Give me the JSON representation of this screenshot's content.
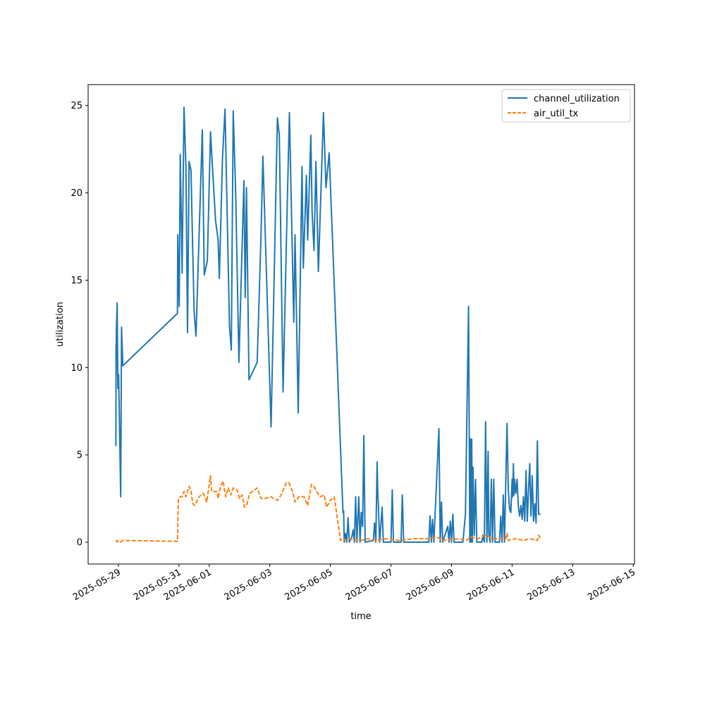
{
  "chart_data": {
    "type": "line",
    "title": "",
    "xlabel": "time",
    "ylabel": "utilization",
    "x_ticks": [
      "2025-05-29",
      "2025-05-31",
      "2025-06-01",
      "2025-06-03",
      "2025-06-05",
      "2025-06-07",
      "2025-06-09",
      "2025-06-11",
      "2025-06-13",
      "2025-06-15"
    ],
    "y_ticks": [
      0,
      5,
      10,
      15,
      20,
      25
    ],
    "xlim": [
      "2025-05-28T00:00",
      "2025-06-15T01:00"
    ],
    "ylim": [
      -1.25,
      26.2
    ],
    "grid": false,
    "legend_position": "top-right",
    "series": [
      {
        "name": "channel_utilization",
        "color": "#1f77b4",
        "style": "solid",
        "points": [
          [
            "2025-05-28T22:00",
            5.5
          ],
          [
            "2025-05-28T22:06",
            11.3
          ],
          [
            "2025-05-28T22:12",
            9.5
          ],
          [
            "2025-05-28T22:24",
            12.2
          ],
          [
            "2025-05-28T23:00",
            13.7
          ],
          [
            "2025-05-28T23:36",
            8.8
          ],
          [
            "2025-05-29T00:12",
            9.6
          ],
          [
            "2025-05-29T01:48",
            2.6
          ],
          [
            "2025-05-29T02:30",
            12.3
          ],
          [
            "2025-05-29T03:30",
            10.1
          ],
          [
            "2025-05-30T22:48",
            13.1
          ],
          [
            "2025-05-30T23:00",
            17.6
          ],
          [
            "2025-05-31T00:12",
            13.5
          ],
          [
            "2025-05-31T01:00",
            22.2
          ],
          [
            "2025-05-31T02:30",
            15.4
          ],
          [
            "2025-05-31T04:00",
            24.9
          ],
          [
            "2025-05-31T05:30",
            21.5
          ],
          [
            "2025-05-31T06:48",
            12.0
          ],
          [
            "2025-05-31T08:00",
            21.8
          ],
          [
            "2025-05-31T09:30",
            21.3
          ],
          [
            "2025-05-31T12:00",
            13.2
          ],
          [
            "2025-05-31T13:30",
            11.8
          ],
          [
            "2025-05-31T18:30",
            23.6
          ],
          [
            "2025-05-31T20:00",
            15.3
          ],
          [
            "2025-05-31T22:30",
            16.1
          ],
          [
            "2025-06-01T00:00",
            20.5
          ],
          [
            "2025-06-01T01:00",
            23.5
          ],
          [
            "2025-06-01T02:30",
            21.5
          ],
          [
            "2025-06-01T05:00",
            18.4
          ],
          [
            "2025-06-01T07:00",
            17.3
          ],
          [
            "2025-06-01T08:00",
            15.1
          ],
          [
            "2025-06-01T10:30",
            22.0
          ],
          [
            "2025-06-01T12:30",
            24.8
          ],
          [
            "2025-06-01T16:00",
            12.4
          ],
          [
            "2025-06-01T17:30",
            11.0
          ],
          [
            "2025-06-01T19:00",
            24.7
          ],
          [
            "2025-06-01T21:00",
            19.8
          ],
          [
            "2025-06-01T23:30",
            10.3
          ],
          [
            "2025-06-02T03:30",
            20.7
          ],
          [
            "2025-06-02T04:30",
            14.0
          ],
          [
            "2025-06-02T05:30",
            20.3
          ],
          [
            "2025-06-02T07:30",
            9.3
          ],
          [
            "2025-06-02T14:00",
            10.3
          ],
          [
            "2025-06-02T17:00",
            17.5
          ],
          [
            "2025-06-02T18:30",
            22.1
          ],
          [
            "2025-06-03T01:00",
            6.6
          ],
          [
            "2025-06-03T04:00",
            17.2
          ],
          [
            "2025-06-03T06:00",
            24.3
          ],
          [
            "2025-06-03T07:30",
            23.3
          ],
          [
            "2025-06-03T10:30",
            8.6
          ],
          [
            "2025-06-03T13:00",
            16.8
          ],
          [
            "2025-06-03T15:30",
            24.6
          ],
          [
            "2025-06-03T19:00",
            12.6
          ],
          [
            "2025-06-03T20:00",
            17.6
          ],
          [
            "2025-06-03T22:30",
            7.4
          ],
          [
            "2025-06-04T01:30",
            21.5
          ],
          [
            "2025-06-04T02:30",
            15.7
          ],
          [
            "2025-06-04T05:00",
            21.0
          ],
          [
            "2025-06-04T06:00",
            17.3
          ],
          [
            "2025-06-04T08:30",
            23.3
          ],
          [
            "2025-06-04T09:30",
            18.9
          ],
          [
            "2025-06-04T11:00",
            16.7
          ],
          [
            "2025-06-04T12:30",
            21.8
          ],
          [
            "2025-06-04T14:30",
            15.5
          ],
          [
            "2025-06-04T18:30",
            24.6
          ],
          [
            "2025-06-04T20:30",
            20.3
          ],
          [
            "2025-06-04T23:00",
            22.3
          ],
          [
            "2025-06-05T10:00",
            1.7
          ],
          [
            "2025-06-05T10:30",
            1.8
          ],
          [
            "2025-06-05T11:00",
            0.0
          ],
          [
            "2025-06-05T12:00",
            0.5
          ],
          [
            "2025-06-05T13:00",
            0.0
          ],
          [
            "2025-06-05T14:00",
            1.4
          ],
          [
            "2025-06-05T15:00",
            0.0
          ],
          [
            "2025-06-05T17:00",
            0.3
          ],
          [
            "2025-06-05T18:00",
            0.7
          ],
          [
            "2025-06-05T19:00",
            0.0
          ],
          [
            "2025-06-05T20:00",
            2.6
          ],
          [
            "2025-06-05T21:00",
            0.0
          ],
          [
            "2025-06-05T22:30",
            2.6
          ],
          [
            "2025-06-05T23:30",
            0.0
          ],
          [
            "2025-06-06T00:30",
            1.7
          ],
          [
            "2025-06-06T01:30",
            0.9
          ],
          [
            "2025-06-06T02:30",
            6.1
          ],
          [
            "2025-06-06T03:30",
            0.0
          ],
          [
            "2025-06-06T10:00",
            0.1
          ],
          [
            "2025-06-06T11:00",
            1.1
          ],
          [
            "2025-06-06T12:00",
            0.0
          ],
          [
            "2025-06-06T13:00",
            4.6
          ],
          [
            "2025-06-06T13:30",
            2.9
          ],
          [
            "2025-06-06T14:00",
            2.1
          ],
          [
            "2025-06-06T15:00",
            0.0
          ],
          [
            "2025-06-06T17:00",
            2.0
          ],
          [
            "2025-06-06T18:00",
            0.0
          ],
          [
            "2025-06-07T00:00",
            0.0
          ],
          [
            "2025-06-07T01:00",
            3.0
          ],
          [
            "2025-06-07T02:00",
            0.0
          ],
          [
            "2025-06-07T08:00",
            0.0
          ],
          [
            "2025-06-07T09:00",
            2.7
          ],
          [
            "2025-06-07T10:00",
            0.0
          ],
          [
            "2025-06-08T06:00",
            0.0
          ],
          [
            "2025-06-08T07:00",
            1.5
          ],
          [
            "2025-06-08T08:00",
            0.0
          ],
          [
            "2025-06-08T09:00",
            1.3
          ],
          [
            "2025-06-08T10:00",
            0.0
          ],
          [
            "2025-06-08T14:00",
            6.5
          ],
          [
            "2025-06-08T15:00",
            0.0
          ],
          [
            "2025-06-08T16:00",
            2.3
          ],
          [
            "2025-06-08T17:00",
            0.0
          ],
          [
            "2025-06-08T21:00",
            0.9
          ],
          [
            "2025-06-08T22:00",
            0.0
          ],
          [
            "2025-06-08T23:00",
            1.2
          ],
          [
            "2025-06-09T00:00",
            0.0
          ],
          [
            "2025-06-09T01:00",
            1.6
          ],
          [
            "2025-06-09T02:00",
            0.0
          ],
          [
            "2025-06-09T09:00",
            0.0
          ],
          [
            "2025-06-09T11:00",
            1.6
          ],
          [
            "2025-06-09T13:30",
            13.5
          ],
          [
            "2025-06-09T14:30",
            0.0
          ],
          [
            "2025-06-09T15:00",
            5.9
          ],
          [
            "2025-06-09T15:30",
            0.0
          ],
          [
            "2025-06-09T16:00",
            5.9
          ],
          [
            "2025-06-09T16:30",
            0.0
          ],
          [
            "2025-06-09T17:00",
            4.3
          ],
          [
            "2025-06-09T18:00",
            0.4
          ],
          [
            "2025-06-09T19:00",
            3.6
          ],
          [
            "2025-06-09T20:00",
            0.0
          ],
          [
            "2025-06-10T00:00",
            0.0
          ],
          [
            "2025-06-10T01:00",
            0.4
          ],
          [
            "2025-06-10T02:00",
            0.0
          ],
          [
            "2025-06-10T03:00",
            6.9
          ],
          [
            "2025-06-10T04:00",
            0.0
          ],
          [
            "2025-06-10T05:00",
            5.2
          ],
          [
            "2025-06-10T05:30",
            0.5
          ],
          [
            "2025-06-10T06:30",
            0.0
          ],
          [
            "2025-06-10T07:30",
            3.6
          ],
          [
            "2025-06-10T08:30",
            0.0
          ],
          [
            "2025-06-10T09:30",
            3.6
          ],
          [
            "2025-06-10T10:30",
            0.0
          ],
          [
            "2025-06-10T14:00",
            0.0
          ],
          [
            "2025-06-10T15:00",
            1.5
          ],
          [
            "2025-06-10T16:00",
            0.0
          ],
          [
            "2025-06-10T17:00",
            2.7
          ],
          [
            "2025-06-10T18:00",
            0.0
          ],
          [
            "2025-06-10T20:00",
            6.8
          ],
          [
            "2025-06-10T21:00",
            3.0
          ],
          [
            "2025-06-10T22:00",
            1.9
          ],
          [
            "2025-06-10T23:00",
            1.7
          ],
          [
            "2025-06-11T00:00",
            3.6
          ],
          [
            "2025-06-11T00:30",
            2.6
          ],
          [
            "2025-06-11T01:00",
            4.5
          ],
          [
            "2025-06-11T01:30",
            2.7
          ],
          [
            "2025-06-11T02:00",
            3.6
          ],
          [
            "2025-06-11T03:00",
            2.8
          ],
          [
            "2025-06-11T04:00",
            3.6
          ],
          [
            "2025-06-11T05:00",
            2.0
          ],
          [
            "2025-06-11T06:00",
            1.5
          ],
          [
            "2025-06-11T07:00",
            2.1
          ],
          [
            "2025-06-11T08:00",
            1.3
          ],
          [
            "2025-06-11T09:00",
            2.6
          ],
          [
            "2025-06-11T10:00",
            1.2
          ],
          [
            "2025-06-11T11:00",
            4.1
          ],
          [
            "2025-06-11T12:00",
            1.2
          ],
          [
            "2025-06-11T13:00",
            3.0
          ],
          [
            "2025-06-11T14:00",
            4.5
          ],
          [
            "2025-06-11T15:00",
            1.5
          ],
          [
            "2025-06-11T16:00",
            3.8
          ],
          [
            "2025-06-11T17:00",
            1.2
          ],
          [
            "2025-06-11T18:00",
            2.2
          ],
          [
            "2025-06-11T19:00",
            1.1
          ],
          [
            "2025-06-11T20:00",
            5.8
          ],
          [
            "2025-06-11T21:00",
            1.6
          ],
          [
            "2025-06-11T22:30",
            1.6
          ]
        ]
      },
      {
        "name": "air_util_tx",
        "color": "#ff7f0e",
        "style": "dashed",
        "points": [
          [
            "2025-05-28T22:00",
            0.0
          ],
          [
            "2025-05-28T23:00",
            0.1
          ],
          [
            "2025-05-29T00:00",
            0.0
          ],
          [
            "2025-05-29T01:30",
            0.0
          ],
          [
            "2025-05-29T03:30",
            0.1
          ],
          [
            "2025-05-30T22:48",
            0.05
          ],
          [
            "2025-05-30T23:30",
            2.5
          ],
          [
            "2025-05-31T01:00",
            2.6
          ],
          [
            "2025-05-31T02:30",
            2.6
          ],
          [
            "2025-05-31T04:00",
            2.9
          ],
          [
            "2025-05-31T05:30",
            2.6
          ],
          [
            "2025-05-31T08:00",
            3.2
          ],
          [
            "2025-05-31T09:30",
            2.9
          ],
          [
            "2025-05-31T11:00",
            2.2
          ],
          [
            "2025-05-31T12:30",
            2.1
          ],
          [
            "2025-05-31T16:00",
            2.6
          ],
          [
            "2025-05-31T19:00",
            2.8
          ],
          [
            "2025-05-31T21:00",
            2.5
          ],
          [
            "2025-05-31T22:00",
            2.3
          ],
          [
            "2025-06-01T00:00",
            3.3
          ],
          [
            "2025-06-01T01:00",
            3.8
          ],
          [
            "2025-06-01T02:00",
            2.9
          ],
          [
            "2025-06-01T06:00",
            2.9
          ],
          [
            "2025-06-01T07:00",
            2.5
          ],
          [
            "2025-06-01T09:00",
            3.2
          ],
          [
            "2025-06-01T11:00",
            3.5
          ],
          [
            "2025-06-01T13:00",
            2.6
          ],
          [
            "2025-06-01T15:00",
            3.1
          ],
          [
            "2025-06-01T17:00",
            2.7
          ],
          [
            "2025-06-01T19:00",
            3.1
          ],
          [
            "2025-06-01T22:00",
            3.0
          ],
          [
            "2025-06-02T00:00",
            2.5
          ],
          [
            "2025-06-02T02:00",
            2.7
          ],
          [
            "2025-06-02T04:00",
            2.0
          ],
          [
            "2025-06-02T06:00",
            2.2
          ],
          [
            "2025-06-02T08:00",
            2.8
          ],
          [
            "2025-06-02T14:00",
            3.1
          ],
          [
            "2025-06-02T17:00",
            2.5
          ],
          [
            "2025-06-02T20:00",
            2.5
          ],
          [
            "2025-06-03T01:00",
            2.6
          ],
          [
            "2025-06-03T03:00",
            2.5
          ],
          [
            "2025-06-03T06:00",
            2.4
          ],
          [
            "2025-06-03T09:00",
            2.7
          ],
          [
            "2025-06-03T13:00",
            3.4
          ],
          [
            "2025-06-03T15:00",
            3.4
          ],
          [
            "2025-06-03T18:00",
            2.9
          ],
          [
            "2025-06-03T20:00",
            2.3
          ],
          [
            "2025-06-03T23:00",
            2.6
          ],
          [
            "2025-06-04T03:00",
            2.6
          ],
          [
            "2025-06-04T06:00",
            2.1
          ],
          [
            "2025-06-04T09:00",
            3.3
          ],
          [
            "2025-06-04T11:00",
            3.2
          ],
          [
            "2025-06-04T13:00",
            2.9
          ],
          [
            "2025-06-04T16:00",
            2.6
          ],
          [
            "2025-06-04T19:00",
            2.7
          ],
          [
            "2025-06-04T21:00",
            2.0
          ],
          [
            "2025-06-05T00:00",
            2.4
          ],
          [
            "2025-06-05T03:00",
            2.6
          ],
          [
            "2025-06-05T08:00",
            0.1
          ],
          [
            "2025-06-05T10:00",
            0.2
          ],
          [
            "2025-06-05T12:00",
            0.1
          ],
          [
            "2025-06-05T15:00",
            0.2
          ],
          [
            "2025-06-06T00:00",
            0.1
          ],
          [
            "2025-06-06T06:00",
            0.2
          ],
          [
            "2025-06-06T12:00",
            0.1
          ],
          [
            "2025-06-06T20:00",
            0.2
          ],
          [
            "2025-06-07T06:00",
            0.1
          ],
          [
            "2025-06-07T18:00",
            0.2
          ],
          [
            "2025-06-08T06:00",
            0.2
          ],
          [
            "2025-06-08T12:00",
            0.3
          ],
          [
            "2025-06-08T18:00",
            0.1
          ],
          [
            "2025-06-09T06:00",
            0.2
          ],
          [
            "2025-06-09T12:00",
            0.1
          ],
          [
            "2025-06-09T15:00",
            0.3
          ],
          [
            "2025-06-09T21:00",
            0.2
          ],
          [
            "2025-06-10T03:00",
            0.4
          ],
          [
            "2025-06-10T09:00",
            0.2
          ],
          [
            "2025-06-10T15:00",
            0.2
          ],
          [
            "2025-06-10T19:00",
            0.2
          ],
          [
            "2025-06-10T20:00",
            0.5
          ],
          [
            "2025-06-10T21:00",
            0.1
          ],
          [
            "2025-06-11T03:00",
            0.2
          ],
          [
            "2025-06-11T09:00",
            0.1
          ],
          [
            "2025-06-11T14:00",
            0.2
          ],
          [
            "2025-06-11T20:00",
            0.1
          ],
          [
            "2025-06-11T21:00",
            0.4
          ],
          [
            "2025-06-11T22:30",
            0.2
          ]
        ]
      }
    ]
  }
}
